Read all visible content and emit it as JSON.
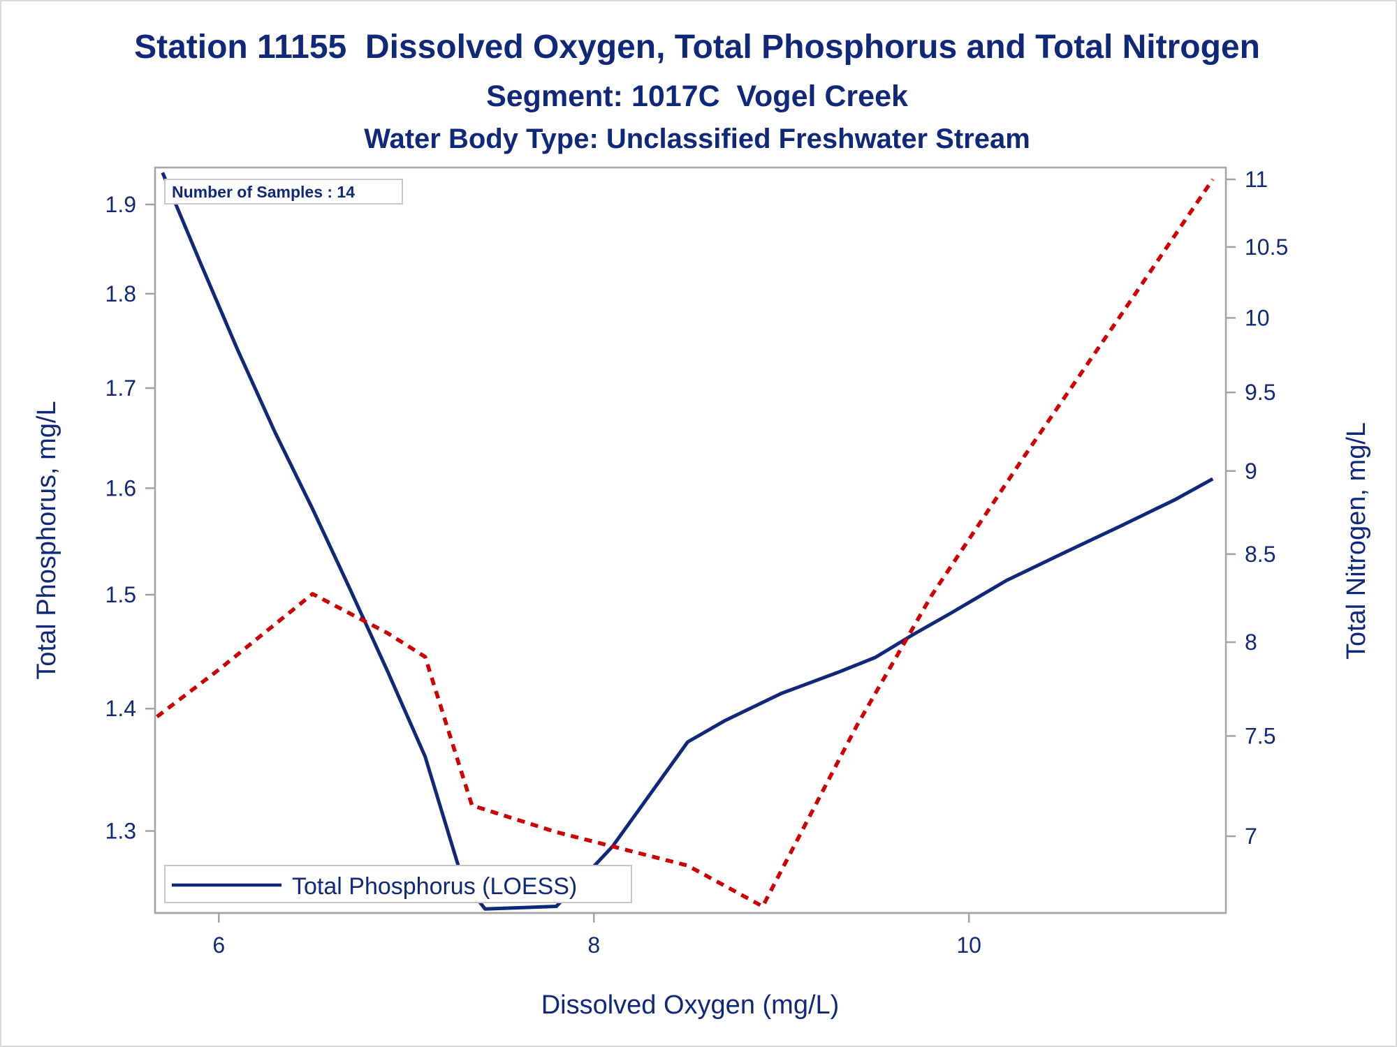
{
  "title": "Station 11155  Dissolved Oxygen, Total Phosphorus and Total Nitrogen",
  "subtitle": "Segment: 1017C  Vogel Creek",
  "subtitle2": "Water Body Type: Unclassified Freshwater Stream",
  "inset": "Number of Samples : 14",
  "colors": {
    "text": "#10287a",
    "phosphorus": "#10287a",
    "nitrogen": "#cc0000",
    "frame": "#a3a3a3"
  },
  "chart_data": {
    "type": "line",
    "title": "Station 11155  Dissolved Oxygen, Total Phosphorus and Total Nitrogen",
    "xlabel": "Dissolved Oxygen (mg/L)",
    "ylabel": "Total Phosphorus, mg/L",
    "y2label": "Total Nitrogen, mg/L",
    "x_ticks": [
      "6",
      "8",
      "10"
    ],
    "y_ticks": [
      "1.3",
      "1.4",
      "1.5",
      "1.6",
      "1.7",
      "1.8",
      "1.9"
    ],
    "y2_ticks": [
      "7",
      "7.5",
      "8",
      "8.5",
      "9",
      "9.5",
      "10",
      "10.5",
      "11"
    ],
    "xlim": [
      5.66,
      11.37
    ],
    "ylim": [
      1.237,
      1.943
    ],
    "y2lim": [
      6.64,
      11.09
    ],
    "y_scale": "log",
    "y2_scale": "log",
    "legend_position": "bottom-left",
    "grid": false,
    "series": [
      {
        "name": "Total Phosphorus (LOESS)",
        "axis": "left",
        "style": "solid",
        "x": [
          5.7,
          5.9,
          6.1,
          6.3,
          6.5,
          6.7,
          6.9,
          7.1,
          7.2,
          7.3,
          7.42,
          7.8,
          8.1,
          8.5,
          8.7,
          9.0,
          9.3,
          9.5,
          9.7,
          9.9,
          10.2,
          10.5,
          10.8,
          11.1,
          11.3
        ],
        "y": [
          1.937,
          1.835,
          1.74,
          1.655,
          1.58,
          1.505,
          1.432,
          1.36,
          1.31,
          1.262,
          1.24,
          1.242,
          1.288,
          1.372,
          1.39,
          1.413,
          1.431,
          1.444,
          1.464,
          1.483,
          1.513,
          1.538,
          1.563,
          1.589,
          1.609
        ]
      },
      {
        "name": "Total Nitrogen",
        "axis": "right",
        "style": "dotted",
        "x": [
          5.67,
          6.0,
          6.5,
          6.9,
          7.1,
          7.35,
          7.8,
          8.5,
          8.9,
          9.4,
          9.8,
          10.3,
          10.8,
          11.3
        ],
        "y": [
          7.6,
          7.85,
          8.27,
          8.05,
          7.92,
          7.15,
          7.02,
          6.86,
          6.67,
          7.55,
          8.26,
          9.1,
          10.0,
          11.0
        ]
      }
    ],
    "legend": [
      "Total Phosphorus (LOESS)"
    ]
  }
}
